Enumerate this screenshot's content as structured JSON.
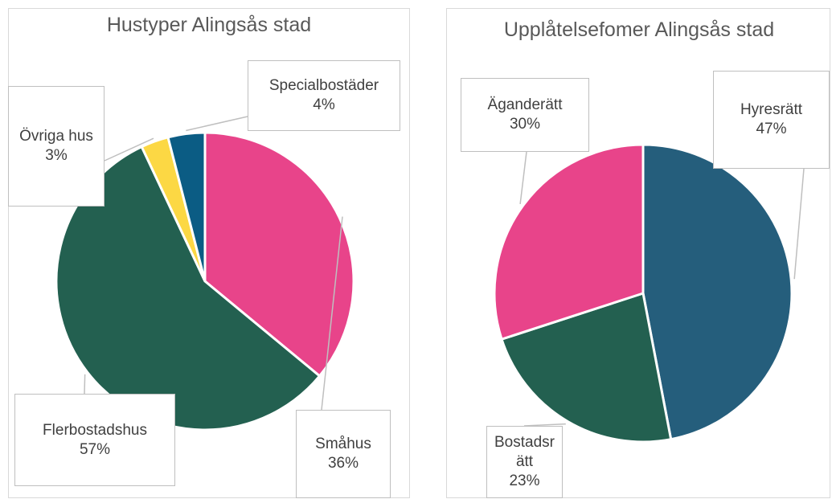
{
  "chart_data": [
    {
      "type": "pie",
      "title": "Hustyper Alingsås stad",
      "categories": [
        "Småhus",
        "Flerbostadshus",
        "Övriga hus",
        "Specialbostäder"
      ],
      "values": [
        36,
        57,
        3,
        4
      ],
      "value_labels": [
        "36%",
        "57%",
        "3%",
        "4%"
      ],
      "colors": [
        "#e8448a",
        "#236050",
        "#fcd844",
        "#0b5c84"
      ]
    },
    {
      "type": "pie",
      "title": "Upplåtelsefomer Alingsås stad",
      "categories": [
        "Hyresrätt",
        "Bostadsrätt",
        "Äganderätt"
      ],
      "values": [
        47,
        23,
        30
      ],
      "value_labels": [
        "47%",
        "23%",
        "30%"
      ],
      "colors": [
        "#255e7c",
        "#236050",
        "#e8448a"
      ]
    }
  ]
}
